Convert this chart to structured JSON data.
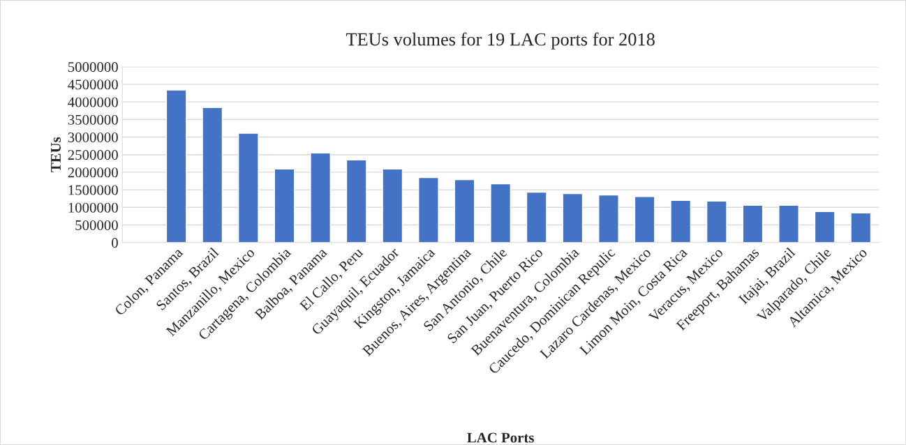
{
  "chart_data": {
    "type": "bar",
    "title": "TEUs volumes for 19 LAC ports for 2018",
    "xlabel": "LAC Ports",
    "ylabel": "TEUs",
    "categories": [
      "Colon, Panama",
      "Santos, Brazil",
      "Manzanillo, Mexico",
      "Cartagena, Colombia",
      "Balboa, Panama",
      "El Callo, Peru",
      "Guayaquil, Ecuador",
      "Kingston, Jamaica",
      "Buenos, Aires, Argentina",
      "San Antonio, Chile",
      "San Juan, Puerto Rico",
      "Buenaventura, Colombia",
      "Caucedo, Dominican Repulic",
      "Lazaro Cardenas, Mexico",
      "Limon Moin, Costa Rica",
      "Veracus, Mexico",
      "Freeport, Bahamas",
      "Itajai, Brazil",
      "Valparado, Chile",
      "Altamica, Mexico"
    ],
    "values": [
      4340000,
      3840000,
      3110000,
      2090000,
      2550000,
      2350000,
      2090000,
      1850000,
      1790000,
      1670000,
      1430000,
      1390000,
      1350000,
      1310000,
      1200000,
      1180000,
      1060000,
      1060000,
      880000,
      840000
    ],
    "color": "#4472c4",
    "ylim": [
      0,
      5000000
    ],
    "yticks": [
      0,
      500000,
      1000000,
      1500000,
      2000000,
      2500000,
      3000000,
      3500000,
      4000000,
      4500000,
      5000000
    ],
    "grid": "y",
    "legend": false
  }
}
